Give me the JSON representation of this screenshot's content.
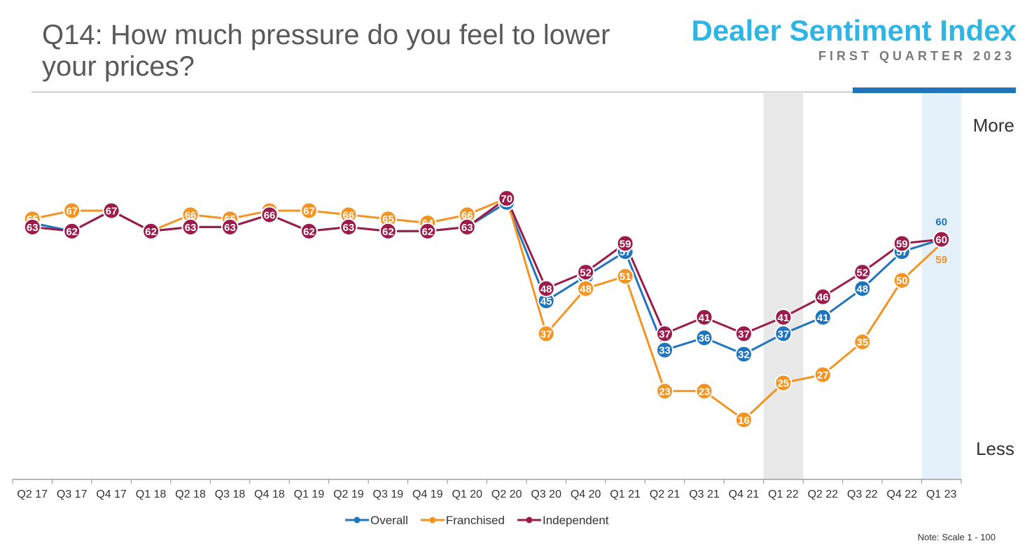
{
  "header": {
    "question": "Q14: How much pressure do you feel to lower your prices?",
    "brand_title": "Dealer Sentiment Index",
    "brand_subtitle": "FIRST QUARTER 2023"
  },
  "scale_labels": {
    "top": "More",
    "bottom": "Less"
  },
  "note": "Note: Scale 1 - 100",
  "colors": {
    "overall": "#1e74bd",
    "franchised": "#f39322",
    "independent": "#9b1b4b",
    "highlight_gray": "#e8e8e8",
    "highlight_blue": "#e4f1fb"
  },
  "chart_data": {
    "type": "line",
    "categories": [
      "Q2 17",
      "Q3 17",
      "Q4 17",
      "Q1 18",
      "Q2 18",
      "Q3 18",
      "Q4 18",
      "Q1 19",
      "Q2 19",
      "Q3 19",
      "Q4 19",
      "Q1 20",
      "Q2 20",
      "Q3 20",
      "Q4 20",
      "Q1 21",
      "Q2 21",
      "Q3 21",
      "Q4 21",
      "Q1 22",
      "Q2 22",
      "Q3 22",
      "Q4 22",
      "Q1 23"
    ],
    "series": [
      {
        "name": "Overall",
        "color": "#1e74bd",
        "values": [
          64,
          62,
          67,
          62,
          63,
          63,
          66,
          62,
          63,
          62,
          62,
          63,
          69,
          45,
          51,
          57,
          33,
          36,
          32,
          37,
          41,
          48,
          57,
          60
        ]
      },
      {
        "name": "Franchised",
        "color": "#f39322",
        "values": [
          65,
          67,
          67,
          62,
          66,
          65,
          67,
          67,
          66,
          65,
          64,
          66,
          70,
          37,
          48,
          51,
          23,
          23,
          16,
          25,
          27,
          35,
          50,
          59
        ]
      },
      {
        "name": "Independent",
        "color": "#9b1b4b",
        "values": [
          63,
          62,
          67,
          62,
          63,
          63,
          66,
          62,
          63,
          62,
          62,
          63,
          70,
          48,
          52,
          59,
          37,
          41,
          37,
          41,
          46,
          52,
          59,
          60
        ]
      }
    ],
    "ylim": [
      1,
      100
    ],
    "highlight_categories": [
      "Q1 22",
      "Q1 23"
    ],
    "legend_position": "bottom",
    "grid": false
  }
}
